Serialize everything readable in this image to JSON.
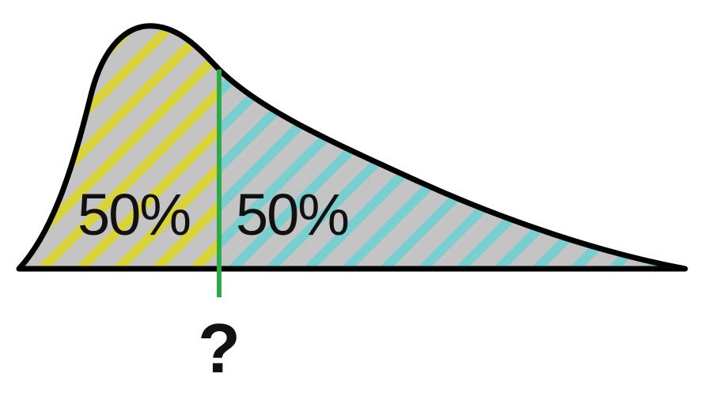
{
  "diagram": {
    "left_area_label": "50%",
    "right_area_label": "50%",
    "median_marker_label": "?"
  },
  "colors": {
    "fill_base": "#c4c4c4",
    "left_hatch": "#d9d33a",
    "right_hatch": "#79cfcf",
    "median_line": "#2fa84a",
    "outline": "#000000"
  }
}
